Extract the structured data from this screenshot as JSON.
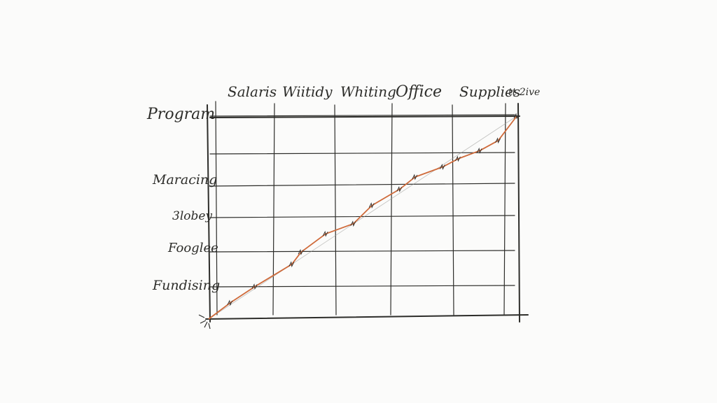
{
  "chart_data": {
    "type": "line",
    "title": "",
    "xlabel": "",
    "ylabel": "",
    "column_labels": [
      "Salaris",
      "Wiitidy",
      "Whiting",
      "Office",
      "Supplies",
      "tt 2ive"
    ],
    "row_labels": [
      "Program",
      "Maracing",
      "3lobey",
      "Fooglee",
      "Fundising"
    ],
    "x": [
      0,
      0.07,
      0.15,
      0.27,
      0.3,
      0.38,
      0.47,
      0.53,
      0.62,
      0.67,
      0.76,
      0.81,
      0.88,
      0.94,
      1.0
    ],
    "series": [
      {
        "values": [
          0,
          0.08,
          0.16,
          0.27,
          0.33,
          0.42,
          0.47,
          0.56,
          0.64,
          0.7,
          0.75,
          0.79,
          0.83,
          0.88,
          1.0
        ]
      }
    ],
    "xlim": [
      0,
      1
    ],
    "ylim": [
      0,
      1
    ],
    "grid": true,
    "colors": {
      "line": "#cf6a3a",
      "ink": "#2d2d2a",
      "background": "#fbfbfa"
    }
  }
}
